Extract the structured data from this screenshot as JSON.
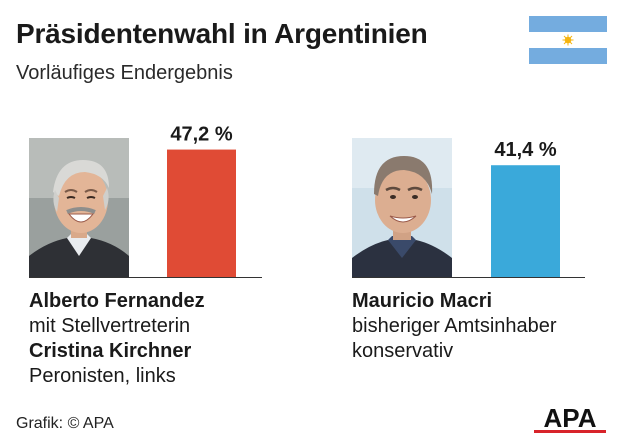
{
  "header": {
    "title": "Präsidentenwahl in Argentinien",
    "subtitle": "Vorläufiges Endergebnis"
  },
  "flag_colors": {
    "blue": "#74ACDF",
    "white": "#FFFFFF",
    "sun": "#F6B40E"
  },
  "chart_data": {
    "type": "bar",
    "categories": [
      "Alberto Fernandez",
      "Mauricio Macri"
    ],
    "values": [
      47.2,
      41.4
    ],
    "value_labels": [
      "47,2 %",
      "41,4 %"
    ],
    "colors": [
      "#E04B35",
      "#3AA9DA"
    ],
    "ylim": [
      0,
      50
    ],
    "grid": false,
    "title": "",
    "xlabel": "",
    "ylabel": ""
  },
  "candidates": [
    {
      "name": "Alberto Fernandez",
      "line2": "mit Stellvertreterin",
      "line3": "Cristina Kirchner",
      "line4": "Peronisten, links",
      "photo_icon": "portrait-fernandez"
    },
    {
      "name": "Mauricio Macri",
      "line2": "bisheriger Amtsinhaber",
      "line3": "konservativ",
      "photo_icon": "portrait-macri"
    }
  ],
  "footer": {
    "source": "Grafik: © APA",
    "logo_text": "APA",
    "logo_color": "#D8232A"
  }
}
